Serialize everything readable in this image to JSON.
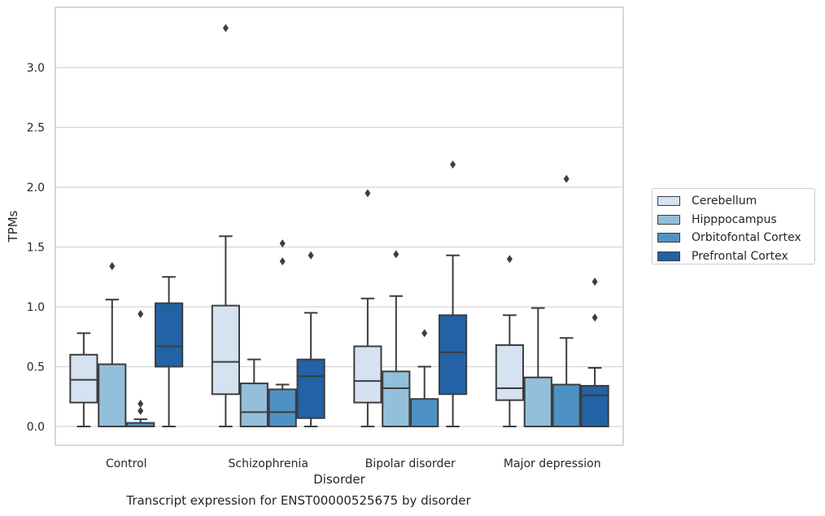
{
  "caption": "Transcript expression for ENST00000525675 by disorder",
  "colors": {
    "Cerebellum": "#d4e2f1",
    "Hipppocampus": "#94bfda",
    "Orbitofontal Cortex": "#4e92c3",
    "Prefrontal Cortex": "#2262a5",
    "box_edge": "#3d3d3d",
    "grid": "#d5d5d5"
  },
  "chart_data": {
    "type": "box",
    "xlabel": "Disorder",
    "ylabel": "TPMs",
    "categories": [
      "Control",
      "Schizophrenia",
      "Bipolar disorder",
      "Major depression"
    ],
    "ylim": [
      -0.16,
      3.51
    ],
    "yticks": [
      "0.0",
      "0.5",
      "1.0",
      "1.5",
      "2.0",
      "2.5",
      "3.0"
    ],
    "grid": true,
    "legend_position": "right",
    "series": [
      {
        "name": "Cerebellum",
        "boxes": [
          {
            "whisker_low": 0.0,
            "q1": 0.2,
            "median": 0.39,
            "q3": 0.6,
            "whisker_high": 0.78,
            "outliers": []
          },
          {
            "whisker_low": 0.0,
            "q1": 0.27,
            "median": 0.54,
            "q3": 1.01,
            "whisker_high": 1.59,
            "outliers": [
              3.33
            ]
          },
          {
            "whisker_low": 0.0,
            "q1": 0.2,
            "median": 0.38,
            "q3": 0.67,
            "whisker_high": 1.07,
            "outliers": [
              1.95
            ]
          },
          {
            "whisker_low": 0.0,
            "q1": 0.22,
            "median": 0.32,
            "q3": 0.68,
            "whisker_high": 0.93,
            "outliers": [
              1.4
            ]
          }
        ]
      },
      {
        "name": "Hipppocampus",
        "boxes": [
          {
            "whisker_low": 0.0,
            "q1": 0.0,
            "median": 0.0,
            "q3": 0.52,
            "whisker_high": 1.06,
            "outliers": [
              1.34
            ]
          },
          {
            "whisker_low": 0.0,
            "q1": 0.0,
            "median": 0.12,
            "q3": 0.36,
            "whisker_high": 0.56,
            "outliers": []
          },
          {
            "whisker_low": 0.0,
            "q1": 0.0,
            "median": 0.32,
            "q3": 0.46,
            "whisker_high": 1.09,
            "outliers": [
              1.44
            ]
          },
          {
            "whisker_low": 0.0,
            "q1": 0.0,
            "median": 0.0,
            "q3": 0.41,
            "whisker_high": 0.99,
            "outliers": []
          }
        ]
      },
      {
        "name": "Orbitofontal Cortex",
        "boxes": [
          {
            "whisker_low": 0.0,
            "q1": 0.0,
            "median": 0.0,
            "q3": 0.03,
            "whisker_high": 0.06,
            "outliers": [
              0.13,
              0.19,
              0.94
            ]
          },
          {
            "whisker_low": 0.0,
            "q1": 0.0,
            "median": 0.12,
            "q3": 0.31,
            "whisker_high": 0.35,
            "outliers": [
              1.38,
              1.53
            ]
          },
          {
            "whisker_low": 0.0,
            "q1": 0.0,
            "median": 0.0,
            "q3": 0.23,
            "whisker_high": 0.5,
            "outliers": [
              0.78
            ]
          },
          {
            "whisker_low": 0.0,
            "q1": 0.0,
            "median": 0.0,
            "q3": 0.35,
            "whisker_high": 0.74,
            "outliers": [
              2.07
            ]
          }
        ]
      },
      {
        "name": "Prefrontal Cortex",
        "boxes": [
          {
            "whisker_low": 0.0,
            "q1": 0.5,
            "median": 0.67,
            "q3": 1.03,
            "whisker_high": 1.25,
            "outliers": []
          },
          {
            "whisker_low": 0.0,
            "q1": 0.07,
            "median": 0.42,
            "q3": 0.56,
            "whisker_high": 0.95,
            "outliers": [
              1.43
            ]
          },
          {
            "whisker_low": 0.0,
            "q1": 0.27,
            "median": 0.62,
            "q3": 0.93,
            "whisker_high": 1.43,
            "outliers": [
              2.19
            ]
          },
          {
            "whisker_low": 0.0,
            "q1": 0.0,
            "median": 0.26,
            "q3": 0.34,
            "whisker_high": 0.49,
            "outliers": [
              0.91,
              1.21
            ]
          }
        ]
      }
    ]
  }
}
